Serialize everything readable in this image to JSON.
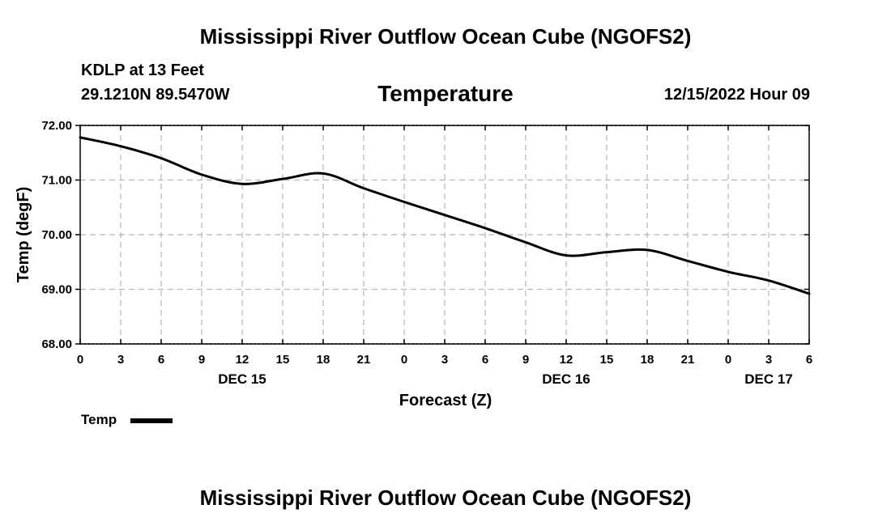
{
  "header": {
    "title": "Mississippi River Outflow Ocean Cube (NGOFS2)",
    "station": "KDLP at 13 Feet",
    "coordinates": "29.1210N  89.5470W",
    "variable": "Temperature",
    "timestamp": "12/15/2022 Hour 09"
  },
  "legend": {
    "label": "Temp"
  },
  "footer": {
    "title": "Mississippi River Outflow Ocean Cube (NGOFS2)"
  },
  "chart_data": {
    "type": "line",
    "title": "Temperature",
    "xlabel": "Forecast (Z)",
    "ylabel": "Temp (degF)",
    "xlim": [
      0,
      54
    ],
    "ylim": [
      68,
      72
    ],
    "grid": true,
    "y_ticks": [
      68,
      69,
      70,
      71,
      72
    ],
    "y_tick_labels": [
      "68.00",
      "69.00",
      "70.00",
      "71.00",
      "72.00"
    ],
    "x_ticks": [
      0,
      3,
      6,
      9,
      12,
      15,
      18,
      21,
      24,
      27,
      30,
      33,
      36,
      39,
      42,
      45,
      48,
      51,
      54
    ],
    "x_tick_labels": [
      "0",
      "3",
      "6",
      "9",
      "12",
      "15",
      "18",
      "21",
      "0",
      "3",
      "6",
      "9",
      "12",
      "15",
      "18",
      "21",
      "0",
      "3",
      "6"
    ],
    "day_labels": [
      {
        "x": 12,
        "label": "DEC 15"
      },
      {
        "x": 36,
        "label": "DEC 16"
      },
      {
        "x": 51,
        "label": "DEC 17"
      }
    ],
    "series": [
      {
        "name": "Temp",
        "color": "#000000",
        "x": [
          0,
          3,
          6,
          9,
          12,
          15,
          18,
          21,
          24,
          27,
          30,
          33,
          36,
          39,
          42,
          45,
          48,
          51,
          54
        ],
        "values": [
          71.78,
          71.62,
          71.4,
          71.1,
          70.93,
          71.02,
          71.12,
          70.85,
          70.6,
          70.36,
          70.12,
          69.86,
          69.62,
          69.68,
          69.72,
          69.52,
          69.32,
          69.16,
          68.92
        ]
      }
    ]
  }
}
